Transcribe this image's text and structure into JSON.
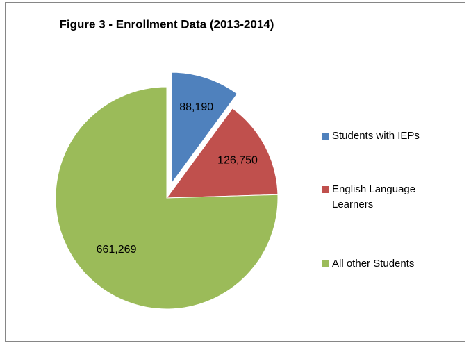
{
  "chart_data": {
    "type": "pie",
    "title": "Figure 3 - Enrollment Data (2013-2014)",
    "categories": [
      "Students with IEPs",
      "English Language Learners",
      "All other Students"
    ],
    "values": [
      88190,
      126750,
      661269
    ],
    "value_labels": [
      "88,190",
      "126,750",
      "661,269"
    ],
    "colors": [
      "#4f81bd",
      "#c0504d",
      "#9bbb59"
    ],
    "exploded": [
      true,
      false,
      false
    ],
    "legend": "right"
  }
}
